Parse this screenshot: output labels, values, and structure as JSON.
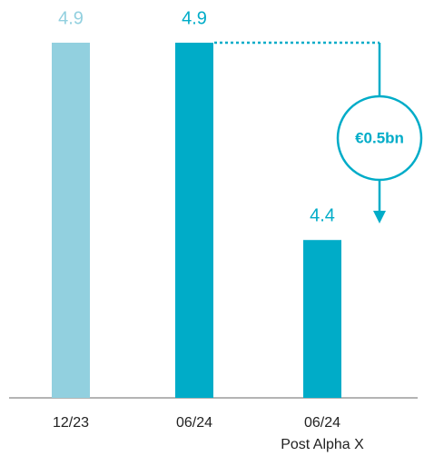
{
  "chart_data": {
    "type": "bar",
    "categories": [
      "12/23",
      "06/24",
      "06/24\nPost Alpha X"
    ],
    "values": [
      4.9,
      4.9,
      4.4
    ],
    "colors": [
      "#92d0df",
      "#00acc8",
      "#00acc8"
    ],
    "ylim": [
      4,
      4.9
    ],
    "annotation": "€0.5bn"
  }
}
